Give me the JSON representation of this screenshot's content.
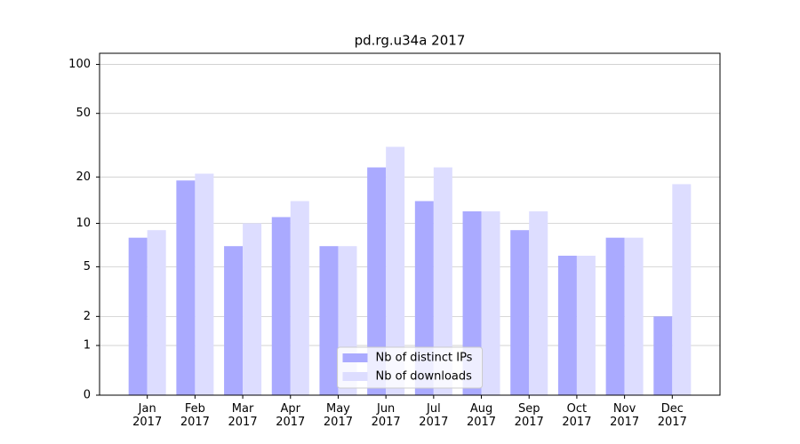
{
  "chart_data": {
    "type": "bar",
    "title": "pd.rg.u34a 2017",
    "categories": [
      "Jan\n2017",
      "Feb\n2017",
      "Mar\n2017",
      "Apr\n2017",
      "May\n2017",
      "Jun\n2017",
      "Jul\n2017",
      "Aug\n2017",
      "Sep\n2017",
      "Oct\n2017",
      "Nov\n2017",
      "Dec\n2017"
    ],
    "series": [
      {
        "name": "Nb of distinct IPs",
        "color": "#aaaaff",
        "values": [
          8,
          19,
          7,
          11,
          7,
          23,
          14,
          12,
          9,
          6,
          8,
          2
        ]
      },
      {
        "name": "Nb of downloads",
        "color": "#ddddff",
        "values": [
          9,
          21,
          10,
          14,
          7,
          31,
          23,
          12,
          12,
          6,
          8,
          18
        ]
      }
    ],
    "yscale": "log1p",
    "ylim": [
      0,
      117
    ],
    "yticks": [
      0,
      1,
      2,
      5,
      10,
      20,
      50,
      100
    ],
    "grid": true,
    "legend": "lower center"
  }
}
